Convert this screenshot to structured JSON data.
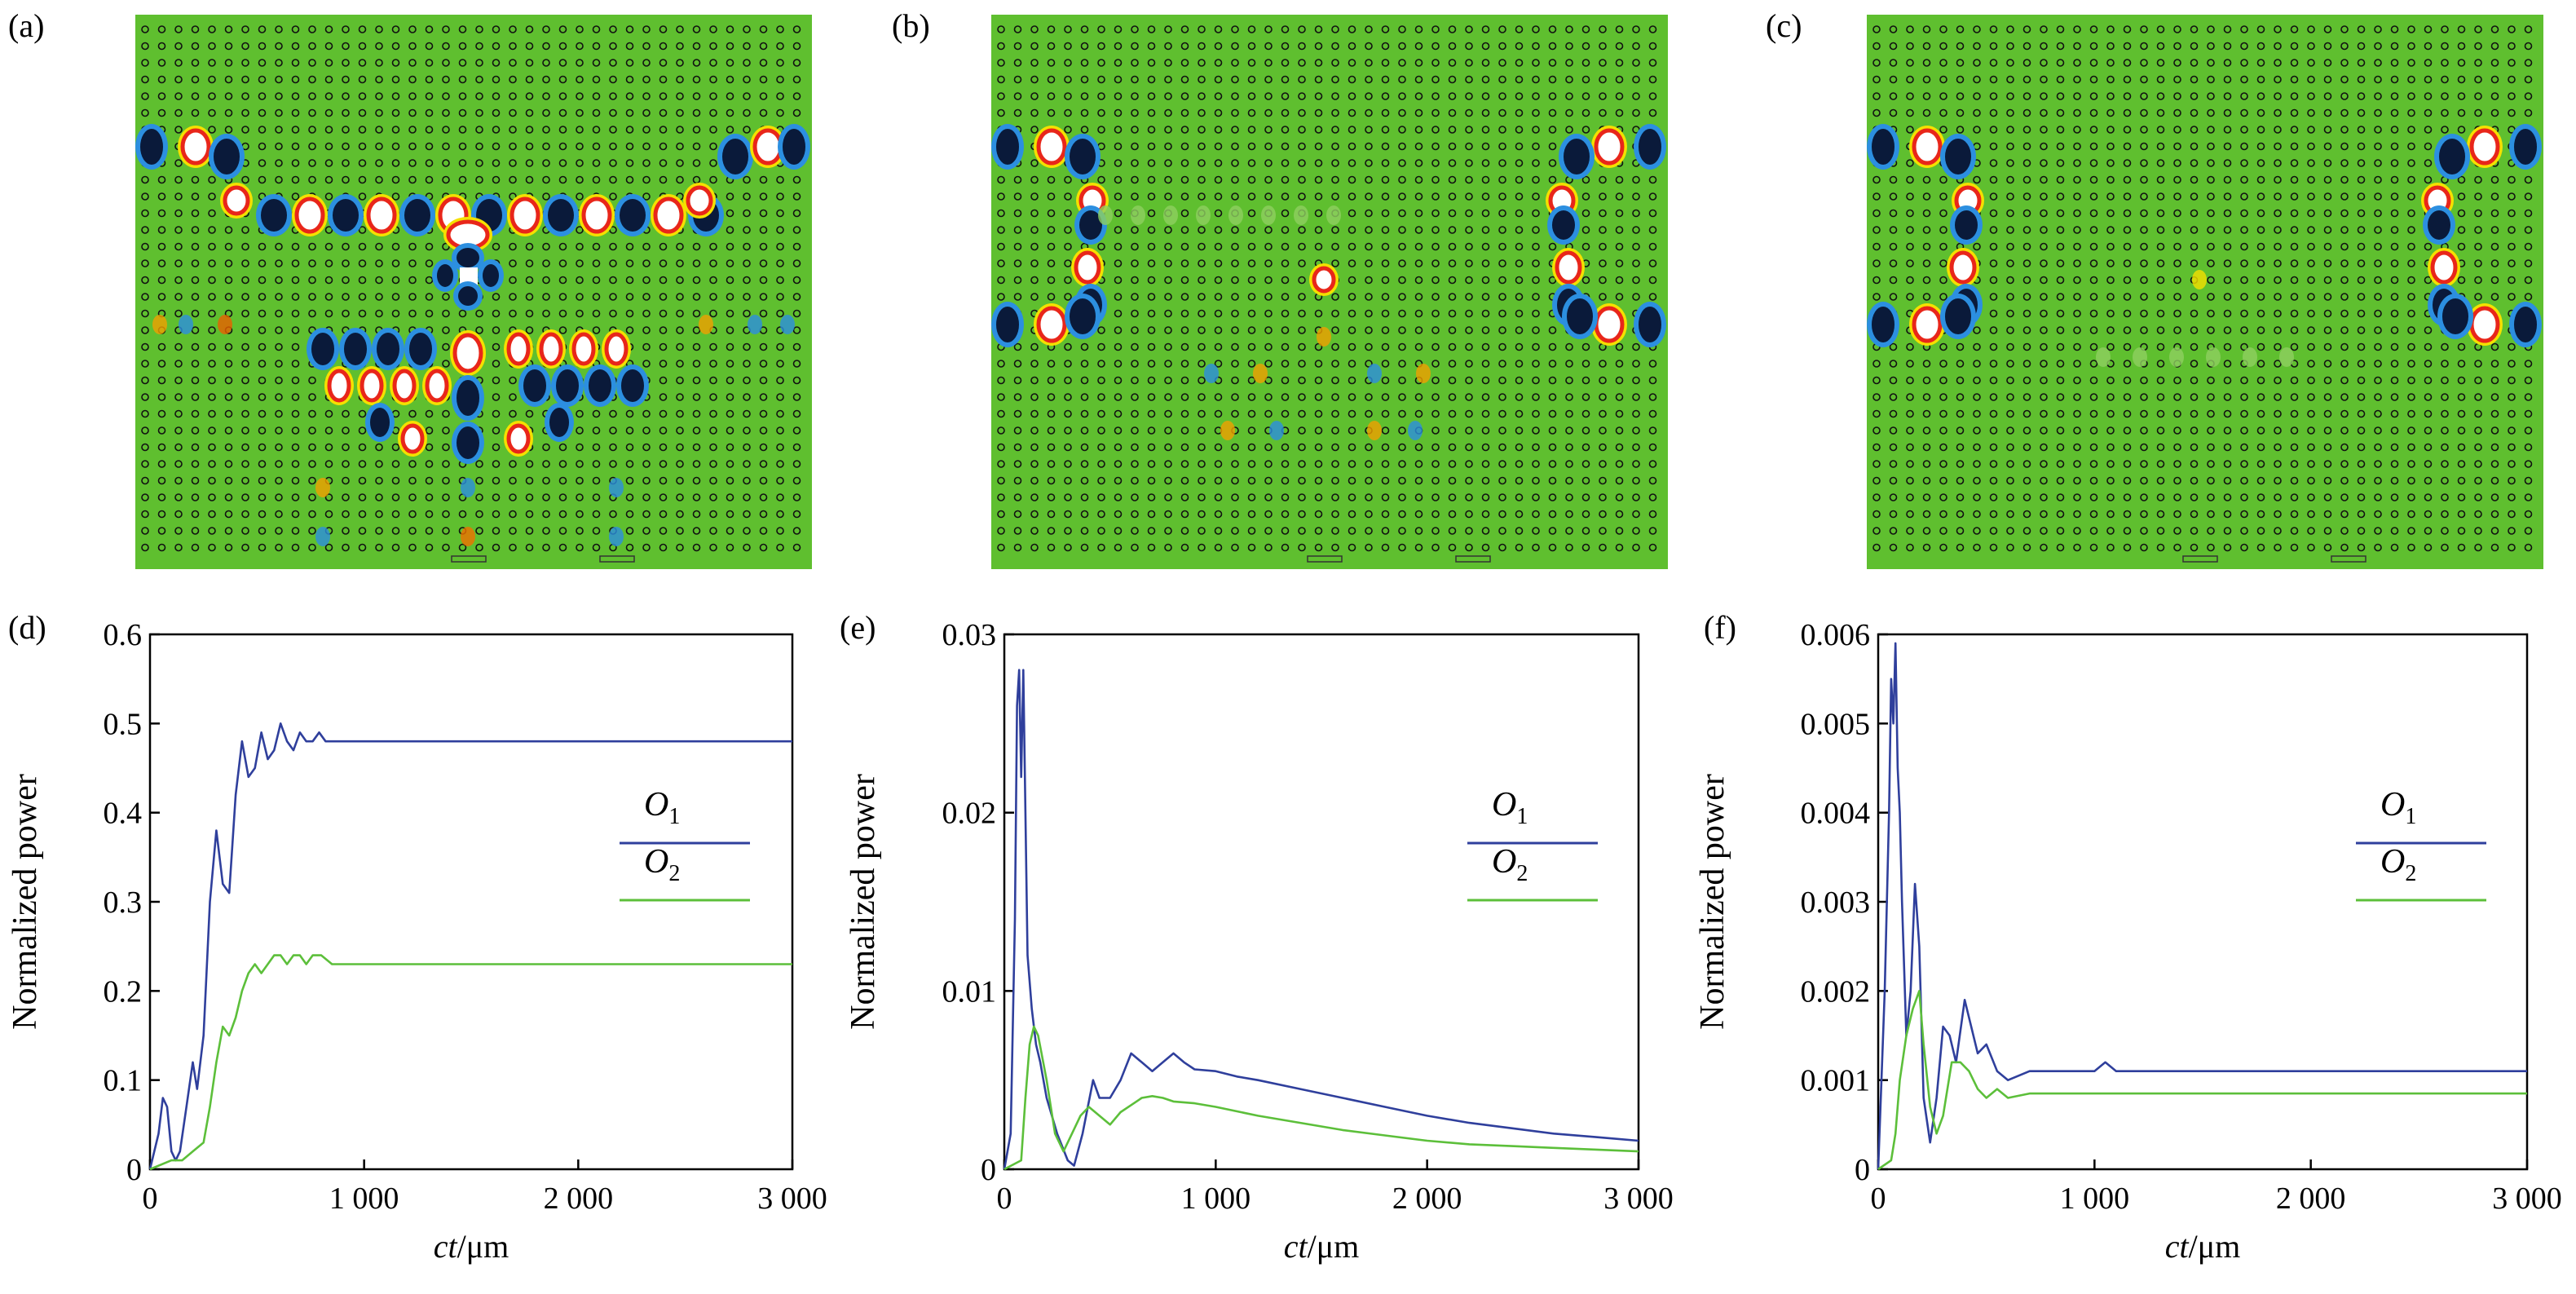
{
  "panel_letters": [
    "(a)",
    "(b)",
    "(c)",
    "(d)",
    "(e)",
    "(f)"
  ],
  "colors": {
    "o1": "#2f3f9c",
    "o2": "#5cbf3a",
    "field_bg": "#5fbf2f",
    "hole": "#111111",
    "hot": "#e8261a",
    "cold": "#0a1a3a"
  },
  "fields": [
    {
      "panel": "(a)",
      "description_icons": "photonic-crystal-field"
    },
    {
      "panel": "(b)",
      "description_icons": "photonic-crystal-field"
    },
    {
      "panel": "(c)",
      "description_icons": "photonic-crystal-field"
    }
  ],
  "chart_data": [
    {
      "panel": "(d)",
      "type": "line",
      "xlabel_italic": "ct",
      "xlabel_unit": "/μm",
      "ylabel": "Normalized power",
      "xlim": [
        0,
        3000
      ],
      "ylim": [
        0,
        0.6
      ],
      "xticks": [
        0,
        1000,
        2000,
        3000
      ],
      "xtick_labels": [
        "0",
        "1 000",
        "2 000",
        "3 000"
      ],
      "yticks": [
        0,
        0.1,
        0.2,
        0.3,
        0.4,
        0.5,
        0.6
      ],
      "ytick_labels": [
        "0",
        "0.1",
        "0.2",
        "0.3",
        "0.4",
        "0.5",
        "0.6"
      ],
      "legend": [
        "O1",
        "O2"
      ],
      "legend_position": "right",
      "series": [
        {
          "name": "O1",
          "color": "#2f3f9c",
          "x": [
            0,
            40,
            60,
            80,
            100,
            120,
            140,
            170,
            200,
            220,
            250,
            280,
            310,
            340,
            370,
            400,
            430,
            460,
            490,
            520,
            550,
            580,
            610,
            640,
            670,
            700,
            730,
            760,
            790,
            820,
            850,
            880,
            920,
            960,
            1000,
            1100,
            1200,
            1500,
            2000,
            2500,
            3000
          ],
          "y": [
            0,
            0.04,
            0.08,
            0.07,
            0.02,
            0.01,
            0.02,
            0.07,
            0.12,
            0.09,
            0.15,
            0.3,
            0.38,
            0.32,
            0.31,
            0.42,
            0.48,
            0.44,
            0.45,
            0.49,
            0.46,
            0.47,
            0.5,
            0.48,
            0.47,
            0.49,
            0.48,
            0.48,
            0.49,
            0.48,
            0.48,
            0.48,
            0.48,
            0.48,
            0.48,
            0.48,
            0.48,
            0.48,
            0.48,
            0.48,
            0.48
          ]
        },
        {
          "name": "O2",
          "color": "#5cbf3a",
          "x": [
            0,
            100,
            150,
            200,
            250,
            280,
            310,
            340,
            370,
            400,
            430,
            460,
            490,
            520,
            550,
            580,
            610,
            640,
            670,
            700,
            730,
            760,
            800,
            850,
            900,
            1000,
            1200,
            1500,
            2000,
            2500,
            3000
          ],
          "y": [
            0,
            0.01,
            0.01,
            0.02,
            0.03,
            0.07,
            0.12,
            0.16,
            0.15,
            0.17,
            0.2,
            0.22,
            0.23,
            0.22,
            0.23,
            0.24,
            0.24,
            0.23,
            0.24,
            0.24,
            0.23,
            0.24,
            0.24,
            0.23,
            0.23,
            0.23,
            0.23,
            0.23,
            0.23,
            0.23,
            0.23
          ]
        }
      ]
    },
    {
      "panel": "(e)",
      "type": "line",
      "xlabel_italic": "ct",
      "xlabel_unit": "/μm",
      "ylabel": "Normalized power",
      "xlim": [
        0,
        3000
      ],
      "ylim": [
        0,
        0.03
      ],
      "xticks": [
        0,
        1000,
        2000,
        3000
      ],
      "xtick_labels": [
        "0",
        "1 000",
        "2 000",
        "3 000"
      ],
      "yticks": [
        0,
        0.01,
        0.02,
        0.03
      ],
      "ytick_labels": [
        "0",
        "0.01",
        "0.02",
        "0.03"
      ],
      "legend": [
        "O1",
        "O2"
      ],
      "legend_position": "right",
      "series": [
        {
          "name": "O1",
          "color": "#2f3f9c",
          "x": [
            0,
            30,
            50,
            60,
            70,
            80,
            90,
            100,
            110,
            130,
            150,
            170,
            200,
            250,
            300,
            330,
            370,
            420,
            450,
            500,
            550,
            600,
            650,
            700,
            750,
            800,
            850,
            900,
            1000,
            1100,
            1200,
            1400,
            1600,
            1800,
            2000,
            2200,
            2400,
            2600,
            2800,
            3000
          ],
          "y": [
            0,
            0.002,
            0.014,
            0.026,
            0.028,
            0.022,
            0.028,
            0.02,
            0.012,
            0.009,
            0.007,
            0.006,
            0.004,
            0.002,
            0.0005,
            0.0002,
            0.002,
            0.005,
            0.004,
            0.004,
            0.005,
            0.0065,
            0.006,
            0.0055,
            0.006,
            0.0065,
            0.006,
            0.0056,
            0.0055,
            0.0052,
            0.005,
            0.0045,
            0.004,
            0.0035,
            0.003,
            0.0026,
            0.0023,
            0.002,
            0.0018,
            0.0016
          ]
        },
        {
          "name": "O2",
          "color": "#5cbf3a",
          "x": [
            0,
            80,
            100,
            120,
            140,
            160,
            200,
            240,
            280,
            320,
            360,
            400,
            450,
            500,
            550,
            600,
            650,
            700,
            750,
            800,
            900,
            1000,
            1200,
            1400,
            1600,
            1800,
            2000,
            2200,
            2400,
            2600,
            2800,
            3000
          ],
          "y": [
            0,
            0.0005,
            0.004,
            0.007,
            0.008,
            0.0075,
            0.005,
            0.002,
            0.001,
            0.002,
            0.003,
            0.0035,
            0.003,
            0.0025,
            0.0032,
            0.0036,
            0.004,
            0.0041,
            0.004,
            0.0038,
            0.0037,
            0.0035,
            0.003,
            0.0026,
            0.0022,
            0.0019,
            0.0016,
            0.0014,
            0.0013,
            0.0012,
            0.0011,
            0.001
          ]
        }
      ]
    },
    {
      "panel": "(f)",
      "type": "line",
      "xlabel_italic": "ct",
      "xlabel_unit": "/μm",
      "ylabel": "Normalized power",
      "xlim": [
        0,
        3000
      ],
      "ylim": [
        0,
        0.006
      ],
      "xticks": [
        0,
        1000,
        2000,
        3000
      ],
      "xtick_labels": [
        "0",
        "1 000",
        "2 000",
        "3 000"
      ],
      "yticks": [
        0,
        0.001,
        0.002,
        0.003,
        0.004,
        0.005,
        0.006
      ],
      "ytick_labels": [
        "0",
        "0.001",
        "0.002",
        "0.003",
        "0.004",
        "0.005",
        "0.006"
      ],
      "legend": [
        "O1",
        "O2"
      ],
      "legend_position": "right",
      "series": [
        {
          "name": "O1",
          "color": "#2f3f9c",
          "x": [
            0,
            30,
            50,
            60,
            70,
            80,
            90,
            100,
            110,
            130,
            150,
            170,
            190,
            210,
            240,
            270,
            300,
            330,
            360,
            400,
            430,
            460,
            500,
            550,
            600,
            700,
            800,
            900,
            1000,
            1050,
            1100,
            1200,
            1500,
            2000,
            2500,
            3000
          ],
          "y": [
            0,
            0.002,
            0.004,
            0.0055,
            0.005,
            0.0059,
            0.0045,
            0.004,
            0.003,
            0.0015,
            0.002,
            0.0032,
            0.0025,
            0.0008,
            0.0003,
            0.0008,
            0.0016,
            0.0015,
            0.0012,
            0.0019,
            0.0016,
            0.0013,
            0.0014,
            0.0011,
            0.001,
            0.0011,
            0.0011,
            0.0011,
            0.0011,
            0.0012,
            0.0011,
            0.0011,
            0.0011,
            0.0011,
            0.0011,
            0.0011
          ]
        },
        {
          "name": "O2",
          "color": "#5cbf3a",
          "x": [
            0,
            60,
            80,
            100,
            130,
            160,
            190,
            210,
            240,
            270,
            300,
            340,
            380,
            420,
            460,
            500,
            550,
            600,
            700,
            800,
            1000,
            1500,
            2000,
            2500,
            3000
          ],
          "y": [
            0,
            0.0001,
            0.0004,
            0.001,
            0.0015,
            0.0018,
            0.002,
            0.0014,
            0.0007,
            0.0004,
            0.0006,
            0.0012,
            0.0012,
            0.0011,
            0.0009,
            0.0008,
            0.0009,
            0.0008,
            0.00085,
            0.00085,
            0.00085,
            0.00085,
            0.00085,
            0.00085,
            0.00085
          ]
        }
      ]
    }
  ]
}
